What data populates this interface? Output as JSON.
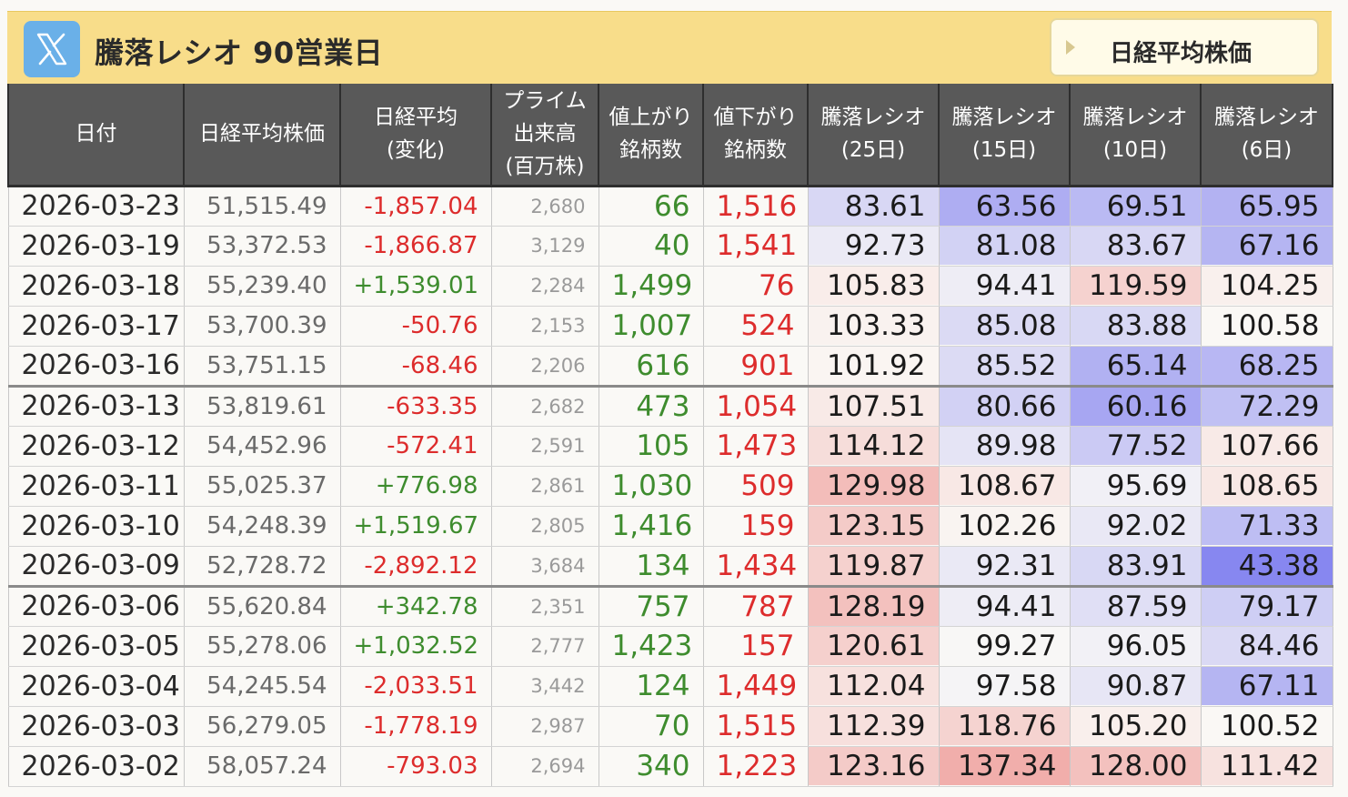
{
  "header": {
    "logo_icon": "x-logo-icon",
    "logo_color": "#6ab0e8",
    "background_color": "#f8dd8a",
    "title": "騰落レシオ 90営業日",
    "nav_button_label": "日経平均株価"
  },
  "columns": [
    [
      "日付"
    ],
    [
      "日経平均株価"
    ],
    [
      "日経平均",
      "(変化)"
    ],
    [
      "プライム",
      "出来高",
      "(百万株)"
    ],
    [
      "値上がり",
      "銘柄数"
    ],
    [
      "値下がり",
      "銘柄数"
    ],
    [
      "騰落レシオ",
      "(25日)"
    ],
    [
      "騰落レシオ",
      "(15日)"
    ],
    [
      "騰落レシオ",
      "(10日)"
    ],
    [
      "騰落レシオ",
      "(6日)"
    ]
  ],
  "colors": {
    "up": "#3e8c2e",
    "down": "#dd2c2c",
    "high_ratio": "#f0a8a8",
    "low_ratio": "#8c8cf0"
  },
  "rows": [
    {
      "date": "2026-03-23",
      "nikkei": "51,515.49",
      "change": "-1,857.04",
      "volume": "2,680",
      "adv": "66",
      "dec": "1,516",
      "r25": "83.61",
      "r15": "63.56",
      "r10": "69.51",
      "r6": "65.95"
    },
    {
      "date": "2026-03-19",
      "nikkei": "53,372.53",
      "change": "-1,866.87",
      "volume": "3,129",
      "adv": "40",
      "dec": "1,541",
      "r25": "92.73",
      "r15": "81.08",
      "r10": "83.67",
      "r6": "67.16"
    },
    {
      "date": "2026-03-18",
      "nikkei": "55,239.40",
      "change": "+1,539.01",
      "volume": "2,284",
      "adv": "1,499",
      "dec": "76",
      "r25": "105.83",
      "r15": "94.41",
      "r10": "119.59",
      "r6": "104.25"
    },
    {
      "date": "2026-03-17",
      "nikkei": "53,700.39",
      "change": "-50.76",
      "volume": "2,153",
      "adv": "1,007",
      "dec": "524",
      "r25": "103.33",
      "r15": "85.08",
      "r10": "83.88",
      "r6": "100.58"
    },
    {
      "date": "2026-03-16",
      "nikkei": "53,751.15",
      "change": "-68.46",
      "volume": "2,206",
      "adv": "616",
      "dec": "901",
      "r25": "101.92",
      "r15": "85.52",
      "r10": "65.14",
      "r6": "68.25"
    },
    {
      "date": "2026-03-13",
      "nikkei": "53,819.61",
      "change": "-633.35",
      "volume": "2,682",
      "adv": "473",
      "dec": "1,054",
      "r25": "107.51",
      "r15": "80.66",
      "r10": "60.16",
      "r6": "72.29"
    },
    {
      "date": "2026-03-12",
      "nikkei": "54,452.96",
      "change": "-572.41",
      "volume": "2,591",
      "adv": "105",
      "dec": "1,473",
      "r25": "114.12",
      "r15": "89.98",
      "r10": "77.52",
      "r6": "107.66"
    },
    {
      "date": "2026-03-11",
      "nikkei": "55,025.37",
      "change": "+776.98",
      "volume": "2,861",
      "adv": "1,030",
      "dec": "509",
      "r25": "129.98",
      "r15": "108.67",
      "r10": "95.69",
      "r6": "108.65"
    },
    {
      "date": "2026-03-10",
      "nikkei": "54,248.39",
      "change": "+1,519.67",
      "volume": "2,805",
      "adv": "1,416",
      "dec": "159",
      "r25": "123.15",
      "r15": "102.26",
      "r10": "92.02",
      "r6": "71.33"
    },
    {
      "date": "2026-03-09",
      "nikkei": "52,728.72",
      "change": "-2,892.12",
      "volume": "3,684",
      "adv": "134",
      "dec": "1,434",
      "r25": "119.87",
      "r15": "92.31",
      "r10": "83.91",
      "r6": "43.38"
    },
    {
      "date": "2026-03-06",
      "nikkei": "55,620.84",
      "change": "+342.78",
      "volume": "2,351",
      "adv": "757",
      "dec": "787",
      "r25": "128.19",
      "r15": "94.41",
      "r10": "87.59",
      "r6": "79.17"
    },
    {
      "date": "2026-03-05",
      "nikkei": "55,278.06",
      "change": "+1,032.52",
      "volume": "2,777",
      "adv": "1,423",
      "dec": "157",
      "r25": "120.61",
      "r15": "99.27",
      "r10": "96.05",
      "r6": "84.46"
    },
    {
      "date": "2026-03-04",
      "nikkei": "54,245.54",
      "change": "-2,033.51",
      "volume": "3,442",
      "adv": "124",
      "dec": "1,449",
      "r25": "112.04",
      "r15": "97.58",
      "r10": "90.87",
      "r6": "67.11"
    },
    {
      "date": "2026-03-03",
      "nikkei": "56,279.05",
      "change": "-1,778.19",
      "volume": "2,987",
      "adv": "70",
      "dec": "1,515",
      "r25": "112.39",
      "r15": "118.76",
      "r10": "105.20",
      "r6": "100.52"
    },
    {
      "date": "2026-03-02",
      "nikkei": "58,057.24",
      "change": "-793.03",
      "volume": "2,694",
      "adv": "340",
      "dec": "1,223",
      "r25": "123.16",
      "r15": "137.34",
      "r10": "128.00",
      "r6": "111.42"
    }
  ]
}
